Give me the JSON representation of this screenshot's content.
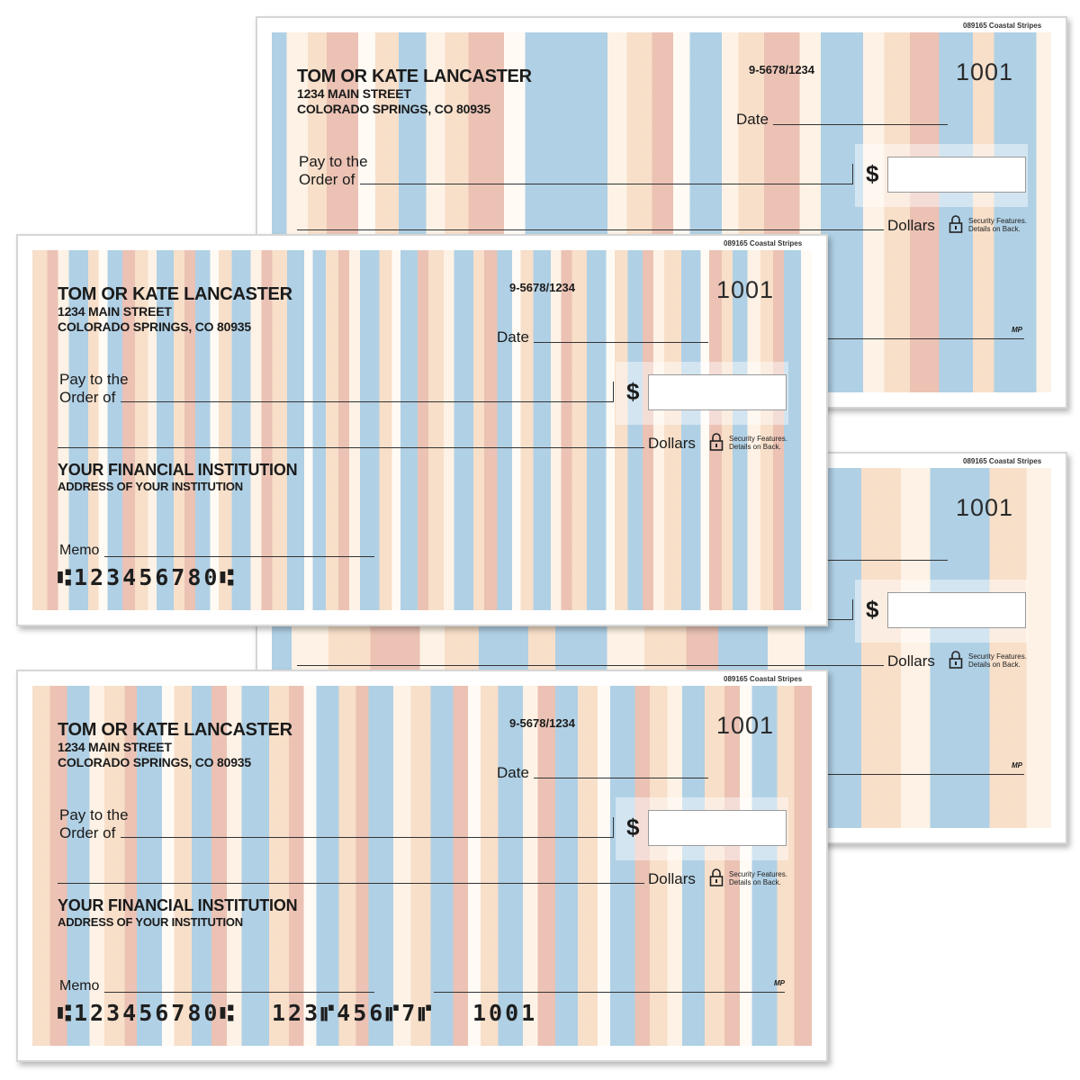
{
  "sku": "089165  Coastal Stripes",
  "owner_name": "TOM OR KATE LANCASTER",
  "owner_address1": "1234 MAIN STREET",
  "owner_address2": "COLORADO SPRINGS, CO 80935",
  "routing_fraction": "9-5678/1234",
  "check_number": "1001",
  "date_label": "Date",
  "pay_label_1": "Pay to the",
  "pay_label_2": "Order of",
  "dollar_sign": "$",
  "dollars_label": "Dollars",
  "security_1": "Security Features.",
  "security_2": "Details on Back.",
  "bank_name": "YOUR FINANCIAL INSTITUTION",
  "bank_address": "ADDRESS OF YOUR INSTITUTION",
  "memo_label": "Memo",
  "micr_routing": "⑆123456780⑆",
  "micr_account": "123⑈456⑈7⑈",
  "micr_check": "1001",
  "mp_mark": "MP",
  "colors": {
    "blue": "#a9cce3",
    "peach": "#f7dcc4",
    "rose": "#e9bdae",
    "cream": "#fdf1e3"
  }
}
